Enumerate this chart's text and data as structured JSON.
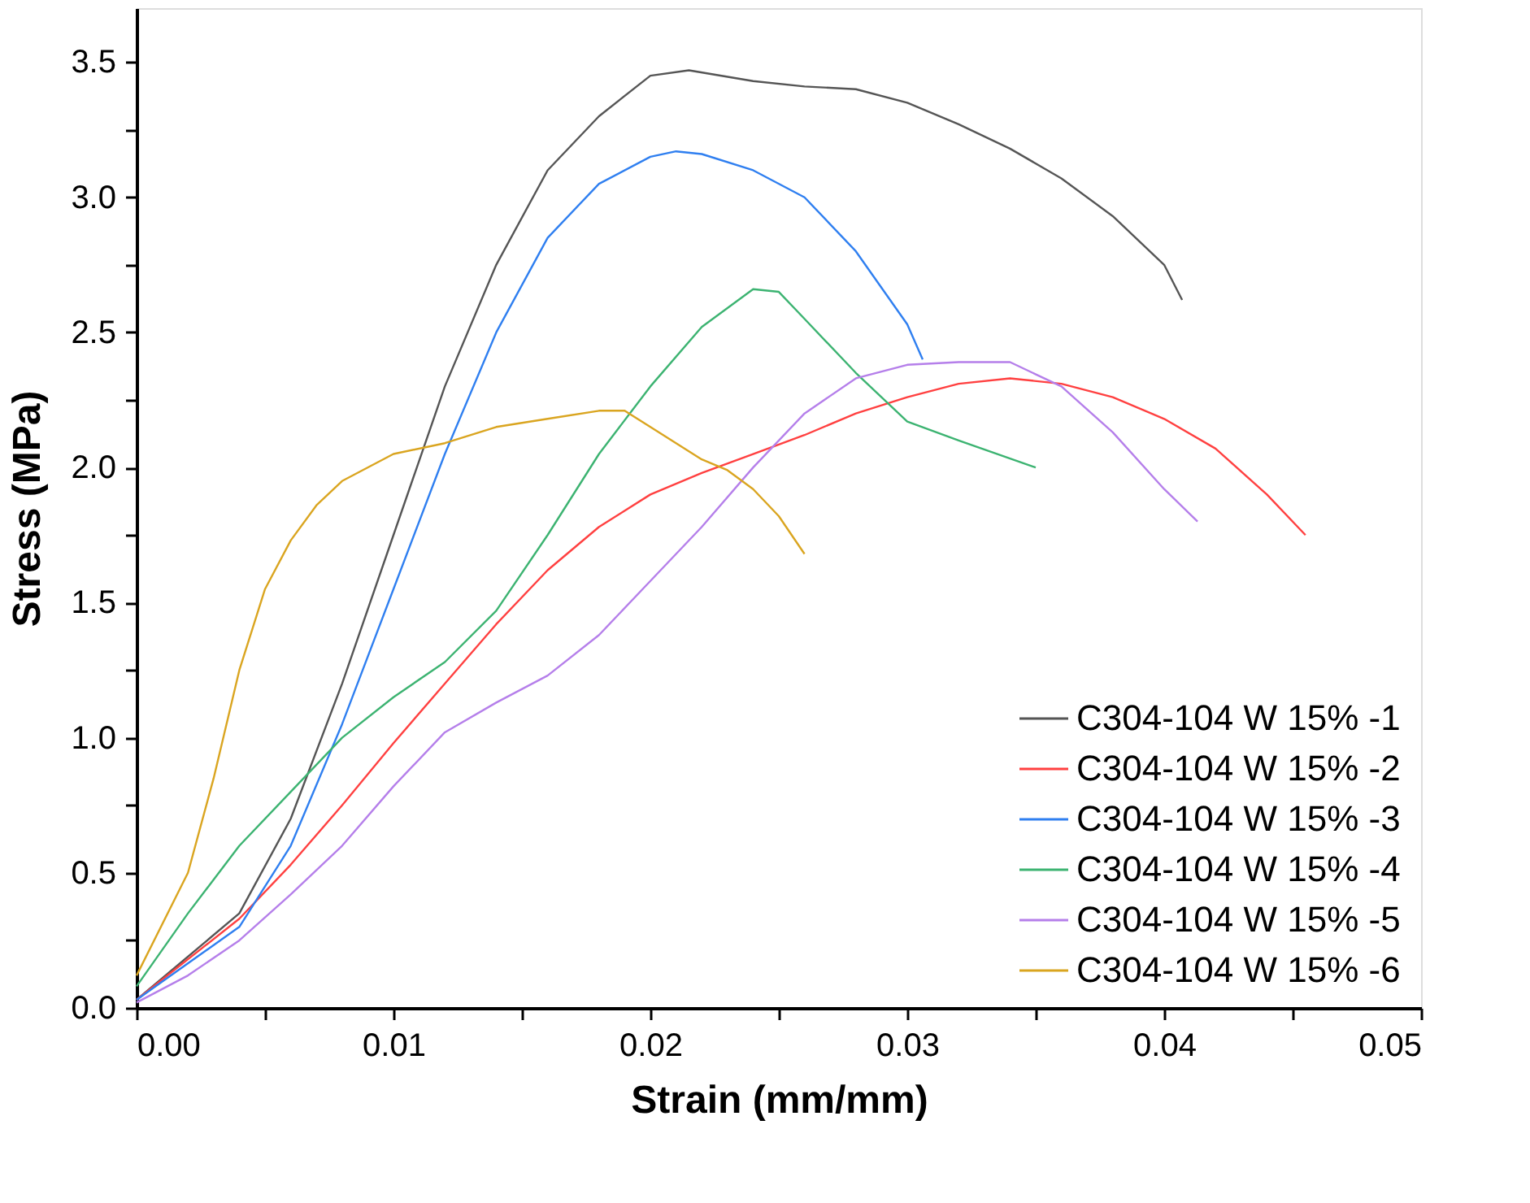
{
  "chart_data": {
    "type": "line",
    "xlabel": "Strain (mm/mm)",
    "ylabel": "Stress (MPa)",
    "xlim": [
      0,
      0.05
    ],
    "ylim": [
      0,
      3.7
    ],
    "xticks": [
      {
        "value": 0,
        "label": "0.00"
      },
      {
        "value": 0.005,
        "label": null
      },
      {
        "value": 0.01,
        "label": "0.01"
      },
      {
        "value": 0.015,
        "label": null
      },
      {
        "value": 0.02,
        "label": "0.02"
      },
      {
        "value": 0.025,
        "label": null
      },
      {
        "value": 0.03,
        "label": "0.03"
      },
      {
        "value": 0.035,
        "label": null
      },
      {
        "value": 0.04,
        "label": "0.04"
      },
      {
        "value": 0.045,
        "label": null
      },
      {
        "value": 0.05,
        "label": "0.05"
      }
    ],
    "yticks": [
      {
        "value": 0,
        "label": "0.0"
      },
      {
        "value": 0.25,
        "label": null
      },
      0.5,
      {
        "value": 0.75,
        "label": null
      },
      {
        "value": 1,
        "label": "1.0"
      },
      {
        "value": 1.25,
        "label": null
      },
      1.5,
      {
        "value": 1.75,
        "label": null
      },
      {
        "value": 2,
        "label": "2.0"
      },
      {
        "value": 2.25,
        "label": null
      },
      2.5,
      {
        "value": 2.75,
        "label": null
      },
      {
        "value": 3,
        "label": "3.0"
      },
      {
        "value": 3.25,
        "label": null
      },
      3.5
    ],
    "grid": false,
    "legend": "bottom right",
    "marker": "none",
    "line_style": "solid",
    "series": [
      {
        "name": "C304-104 W 15% -1",
        "color": "#555555",
        "x": [
          0,
          0.004,
          0.006,
          0.008,
          0.01,
          0.012,
          0.014,
          0.016,
          0.018,
          0.02,
          0.0215,
          0.024,
          0.026,
          0.028,
          0.03,
          0.032,
          0.034,
          0.036,
          0.038,
          0.04,
          0.0407
        ],
        "values": [
          0.03,
          0.35,
          0.7,
          1.2,
          1.75,
          2.3,
          2.75,
          3.1,
          3.3,
          3.45,
          3.47,
          3.43,
          3.41,
          3.4,
          3.35,
          3.27,
          3.18,
          3.07,
          2.93,
          2.75,
          2.62
        ]
      },
      {
        "name": "C304-104 W 15% -2",
        "color": "#ff4040",
        "x": [
          0,
          0.004,
          0.006,
          0.008,
          0.01,
          0.012,
          0.014,
          0.016,
          0.018,
          0.02,
          0.022,
          0.024,
          0.026,
          0.028,
          0.03,
          0.032,
          0.034,
          0.036,
          0.038,
          0.04,
          0.042,
          0.044,
          0.0455
        ],
        "values": [
          0.03,
          0.33,
          0.53,
          0.75,
          0.98,
          1.2,
          1.42,
          1.62,
          1.78,
          1.9,
          1.98,
          2.05,
          2.12,
          2.2,
          2.26,
          2.31,
          2.33,
          2.31,
          2.26,
          2.18,
          2.07,
          1.9,
          1.75
        ]
      },
      {
        "name": "C304-104 W 15% -3",
        "color": "#2f7ff0",
        "x": [
          0,
          0.004,
          0.006,
          0.008,
          0.01,
          0.012,
          0.014,
          0.016,
          0.018,
          0.02,
          0.021,
          0.022,
          0.024,
          0.026,
          0.028,
          0.03,
          0.0306
        ],
        "values": [
          0.03,
          0.3,
          0.6,
          1.05,
          1.55,
          2.05,
          2.5,
          2.85,
          3.05,
          3.15,
          3.17,
          3.16,
          3.1,
          3.0,
          2.8,
          2.53,
          2.4
        ]
      },
      {
        "name": "C304-104 W 15% -4",
        "color": "#3cb371",
        "x": [
          0,
          0.002,
          0.004,
          0.006,
          0.008,
          0.01,
          0.012,
          0.014,
          0.016,
          0.018,
          0.02,
          0.022,
          0.024,
          0.025,
          0.026,
          0.028,
          0.03,
          0.032,
          0.035
        ],
        "values": [
          0.08,
          0.35,
          0.6,
          0.8,
          1.0,
          1.15,
          1.28,
          1.47,
          1.75,
          2.05,
          2.3,
          2.52,
          2.66,
          2.65,
          2.55,
          2.35,
          2.17,
          2.1,
          2.0
        ]
      },
      {
        "name": "C304-104 W 15% -5",
        "color": "#b57fea",
        "x": [
          0,
          0.002,
          0.004,
          0.006,
          0.008,
          0.01,
          0.012,
          0.014,
          0.016,
          0.018,
          0.02,
          0.022,
          0.024,
          0.026,
          0.028,
          0.03,
          0.032,
          0.034,
          0.036,
          0.038,
          0.04,
          0.0413
        ],
        "values": [
          0.02,
          0.12,
          0.25,
          0.42,
          0.6,
          0.82,
          1.02,
          1.13,
          1.23,
          1.38,
          1.58,
          1.78,
          2.0,
          2.2,
          2.33,
          2.38,
          2.39,
          2.39,
          2.3,
          2.13,
          1.92,
          1.8
        ]
      },
      {
        "name": "C304-104 W 15% -6",
        "color": "#daa520",
        "x": [
          0,
          0.002,
          0.003,
          0.004,
          0.005,
          0.006,
          0.007,
          0.008,
          0.01,
          0.012,
          0.014,
          0.016,
          0.018,
          0.019,
          0.02,
          0.022,
          0.023,
          0.024,
          0.025,
          0.026
        ],
        "values": [
          0.12,
          0.5,
          0.85,
          1.25,
          1.55,
          1.73,
          1.86,
          1.95,
          2.05,
          2.09,
          2.15,
          2.18,
          2.21,
          2.21,
          2.15,
          2.03,
          1.99,
          1.92,
          1.82,
          1.68
        ]
      }
    ]
  }
}
